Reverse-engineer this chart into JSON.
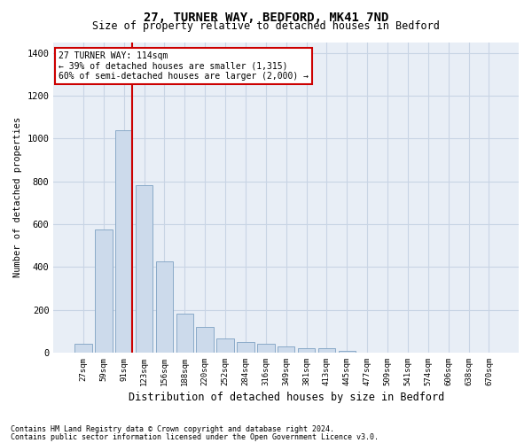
{
  "title1": "27, TURNER WAY, BEDFORD, MK41 7ND",
  "title2": "Size of property relative to detached houses in Bedford",
  "xlabel": "Distribution of detached houses by size in Bedford",
  "ylabel": "Number of detached properties",
  "bar_labels": [
    "27sqm",
    "59sqm",
    "91sqm",
    "123sqm",
    "156sqm",
    "188sqm",
    "220sqm",
    "252sqm",
    "284sqm",
    "316sqm",
    "349sqm",
    "381sqm",
    "413sqm",
    "445sqm",
    "477sqm",
    "509sqm",
    "541sqm",
    "574sqm",
    "606sqm",
    "638sqm",
    "670sqm"
  ],
  "bar_values": [
    40,
    575,
    1040,
    780,
    425,
    180,
    120,
    65,
    50,
    40,
    28,
    20,
    20,
    10,
    0,
    0,
    0,
    0,
    0,
    0,
    0
  ],
  "bar_color": "#ccdaeb",
  "bar_edge_color": "#8aaac8",
  "vline_color": "#cc0000",
  "ylim": [
    0,
    1450
  ],
  "yticks": [
    0,
    200,
    400,
    600,
    800,
    1000,
    1200,
    1400
  ],
  "annotation_text": "27 TURNER WAY: 114sqm\n← 39% of detached houses are smaller (1,315)\n60% of semi-detached houses are larger (2,000) →",
  "annotation_box_color": "white",
  "annotation_box_edge": "#cc0000",
  "footer1": "Contains HM Land Registry data © Crown copyright and database right 2024.",
  "footer2": "Contains public sector information licensed under the Open Government Licence v3.0.",
  "grid_color": "#c8d4e4",
  "bg_color": "#e8eef6",
  "title1_fontsize": 10,
  "title2_fontsize": 8.5,
  "ylabel_fontsize": 7.5,
  "xlabel_fontsize": 8.5,
  "ytick_fontsize": 7.5,
  "xtick_fontsize": 6.5,
  "ann_fontsize": 7.0,
  "footer_fontsize": 6.0,
  "vline_x_index": 2
}
